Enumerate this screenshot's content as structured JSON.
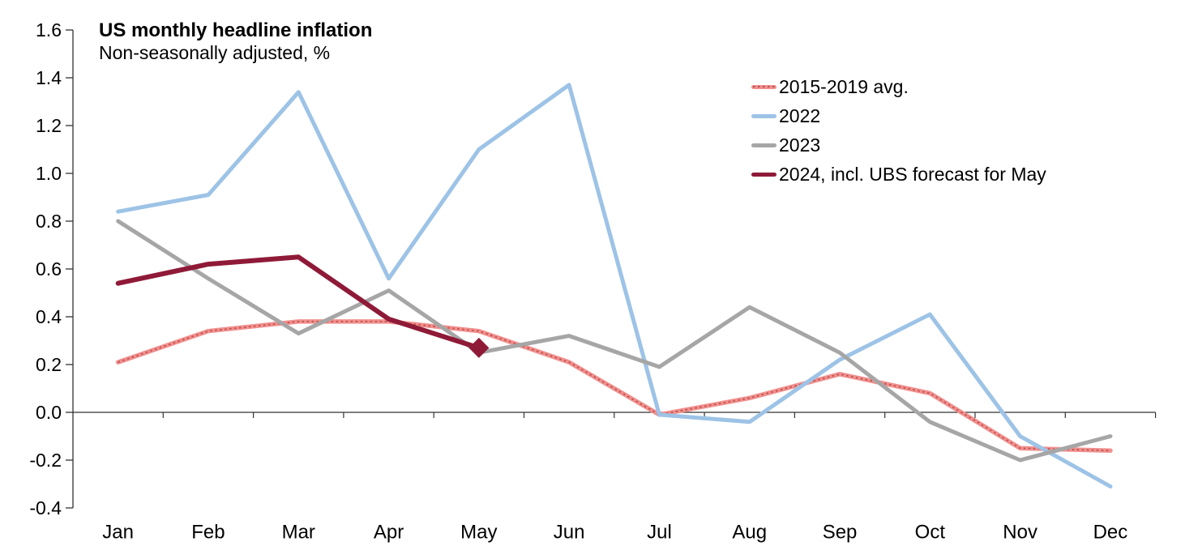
{
  "header": {
    "title": "US monthly headline inflation",
    "subtitle": "Non-seasonally adjusted, %"
  },
  "chart_data": {
    "type": "line",
    "title": "US monthly headline inflation",
    "subtitle": "Non-seasonally adjusted, %",
    "xlabel": "",
    "ylabel": "",
    "categories": [
      "Jan",
      "Feb",
      "Mar",
      "Apr",
      "May",
      "Jun",
      "Jul",
      "Aug",
      "Sep",
      "Oct",
      "Nov",
      "Dec"
    ],
    "ylim": [
      -0.4,
      1.6
    ],
    "ytick_step": 0.2,
    "grid": false,
    "legend_position": "top-right-inside",
    "series": [
      {
        "name": "2015-2019 avg.",
        "color": "#F0908E",
        "overlay_dot_color": "#C0504D",
        "style": "solid-with-dotted-overlay",
        "values": [
          0.21,
          0.34,
          0.38,
          0.38,
          0.34,
          0.21,
          -0.01,
          0.06,
          0.16,
          0.08,
          -0.15,
          -0.16
        ]
      },
      {
        "name": "2022",
        "color": "#9DC3E6",
        "style": "solid",
        "values": [
          0.84,
          0.91,
          1.34,
          0.56,
          1.1,
          1.37,
          -0.01,
          -0.04,
          0.22,
          0.41,
          -0.1,
          -0.31
        ]
      },
      {
        "name": "2023",
        "color": "#A6A6A6",
        "style": "solid",
        "values": [
          0.8,
          0.56,
          0.33,
          0.51,
          0.25,
          0.32,
          0.19,
          0.44,
          0.25,
          -0.04,
          -0.2,
          -0.1
        ]
      },
      {
        "name": "2024, incl. UBS forecast for May",
        "color": "#8F1A38",
        "style": "solid",
        "values": [
          0.54,
          0.62,
          0.65,
          0.39,
          0.27,
          null,
          null,
          null,
          null,
          null,
          null,
          null
        ],
        "marker": {
          "index": 4,
          "shape": "diamond"
        }
      }
    ]
  }
}
